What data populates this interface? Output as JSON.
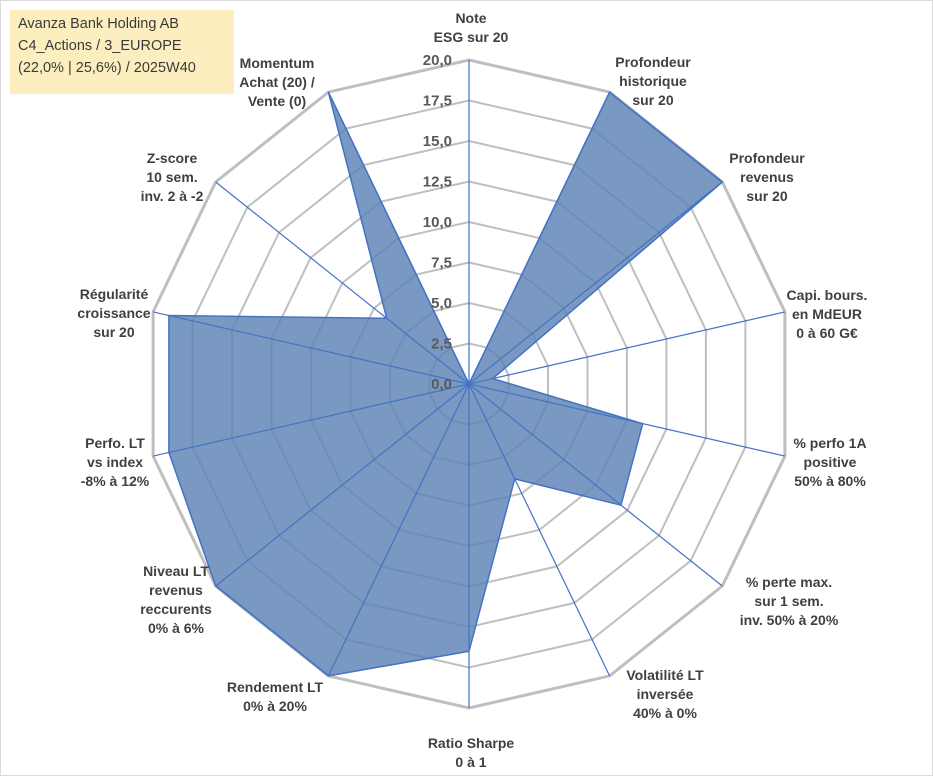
{
  "title_box": {
    "line1": "Avanza Bank Holding AB",
    "line2": "C4_Actions / 3_EUROPE",
    "line3": "(22,0% | 25,6%) / 2025W40"
  },
  "chart_data": {
    "type": "radar",
    "rmin": 0,
    "rmax": 20,
    "tick_labels": [
      "0,0",
      "2,5",
      "5,0",
      "7,5",
      "10,0",
      "12,5",
      "15,0",
      "17,5",
      "20,0"
    ],
    "categories": [
      [
        "Note",
        "ESG sur 20"
      ],
      [
        "Profondeur",
        "historique",
        "sur 20"
      ],
      [
        "Profondeur",
        "revenus",
        "sur 20"
      ],
      [
        "Capi. bours.",
        "en MdEUR",
        "0 à 60 G€"
      ],
      [
        "% perfo 1A",
        "positive",
        "50% à 80%"
      ],
      [
        "% perte max.",
        "sur 1 sem.",
        "inv. 50% à 20%"
      ],
      [
        "Volatilité LT",
        "inversée",
        "40% à 0%"
      ],
      [
        "Ratio Sharpe",
        "0 à 1"
      ],
      [
        "Rendement LT",
        "0% à 20%"
      ],
      [
        "Niveau LT",
        "revenus",
        "reccurents",
        "0% à 6%"
      ],
      [
        "Perfo. LT",
        "vs index",
        "-8% à 12%"
      ],
      [
        "Régularité",
        "croissance",
        "sur 20"
      ],
      [
        "Z-score",
        "10 sem.",
        "inv. 2 à -2"
      ],
      [
        "Momentum",
        "Achat (20) /",
        "Vente (0)"
      ]
    ],
    "values": [
      0,
      20,
      20,
      1.5,
      11,
      12,
      6.5,
      16.5,
      20,
      20,
      19,
      19,
      6.5,
      20
    ],
    "grid": true,
    "legend": "none",
    "colors": {
      "fill": "#5b82b5",
      "stroke": "#4472c4",
      "grid": "#bfbfbf",
      "spoke": "#4472c4"
    }
  }
}
